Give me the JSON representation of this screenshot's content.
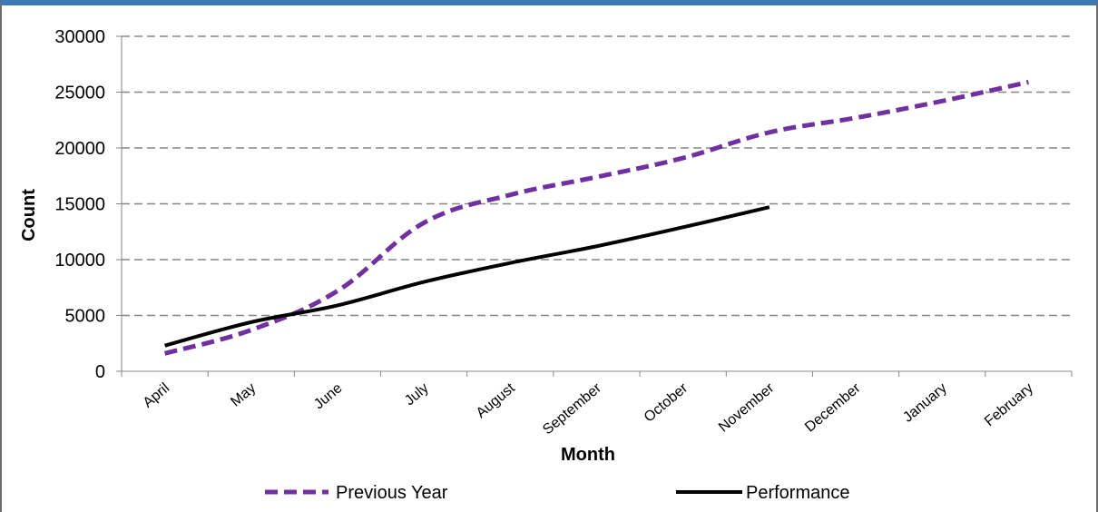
{
  "chart_data": {
    "type": "line",
    "title": "",
    "xlabel": "Month",
    "ylabel": "Count",
    "ylim": [
      0,
      30000
    ],
    "yticks": [
      0,
      5000,
      10000,
      15000,
      20000,
      25000,
      30000
    ],
    "grid": true,
    "legend_position": "bottom",
    "categories": [
      "April",
      "May",
      "June",
      "July",
      "August",
      "September",
      "October",
      "November",
      "December",
      "January",
      "February"
    ],
    "series": [
      {
        "name": "Previous Year",
        "color": "#7030a0",
        "style": "dashed",
        "values": [
          1600,
          3700,
          7200,
          13300,
          15800,
          17400,
          19100,
          21400,
          22700,
          24200,
          25900
        ]
      },
      {
        "name": "Performance",
        "color": "#000000",
        "style": "solid",
        "values": [
          2300,
          4400,
          5900,
          8000,
          9700,
          11200,
          12900,
          14700,
          null,
          null,
          null
        ]
      }
    ]
  }
}
